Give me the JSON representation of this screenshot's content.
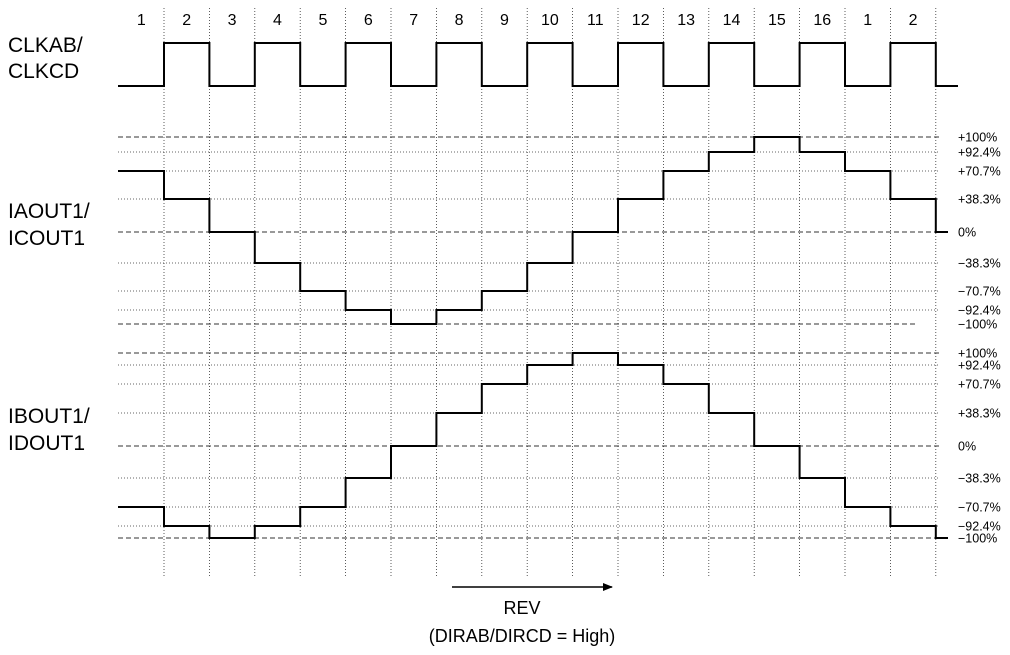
{
  "steps": [
    "1",
    "2",
    "3",
    "4",
    "5",
    "6",
    "7",
    "8",
    "9",
    "10",
    "11",
    "12",
    "13",
    "14",
    "15",
    "16",
    "1",
    "2"
  ],
  "clock": {
    "label_line1": "CLKAB/",
    "label_line2": "CLKCD",
    "levels": [
      0,
      1,
      0,
      1,
      0,
      1,
      0,
      1,
      0,
      1,
      0,
      1,
      0,
      1,
      0,
      1,
      0,
      1
    ]
  },
  "panel_a": {
    "label_line1": "IAOUT1/",
    "label_line2": "ICOUT1",
    "levels_percent": [
      70.7,
      38.3,
      0,
      -38.3,
      -70.7,
      -92.4,
      -100,
      -92.4,
      -70.7,
      -38.3,
      0,
      38.3,
      70.7,
      92.4,
      100,
      92.4,
      70.7,
      38.3
    ],
    "end_level_percent": 0
  },
  "panel_b": {
    "label_line1": "IBOUT1/",
    "label_line2": "IDOUT1",
    "levels_percent": [
      -70.7,
      -92.4,
      -100,
      -92.4,
      -70.7,
      -38.3,
      0,
      38.3,
      70.7,
      92.4,
      100,
      92.4,
      70.7,
      38.3,
      0,
      -38.3,
      -70.7,
      -92.4
    ],
    "end_level_percent": -100
  },
  "levels": [
    {
      "value": 100,
      "label": "+100%",
      "style": "dashed"
    },
    {
      "value": 92.4,
      "label": "+92.4%",
      "style": "dotted"
    },
    {
      "value": 70.7,
      "label": "+70.7%",
      "style": "dotted"
    },
    {
      "value": 38.3,
      "label": "+38.3%",
      "style": "dotted"
    },
    {
      "value": 0,
      "label": "0%",
      "style": "dashed"
    },
    {
      "value": -38.3,
      "label": "−38.3%",
      "style": "dotted"
    },
    {
      "value": -70.7,
      "label": "−70.7%",
      "style": "dotted"
    },
    {
      "value": -92.4,
      "label": "−92.4%",
      "style": "dotted"
    },
    {
      "value": -100,
      "label": "−100%",
      "style": "dashed"
    }
  ],
  "direction": {
    "label": "REV",
    "condition": "(DIRAB/DIRCD = High)"
  }
}
